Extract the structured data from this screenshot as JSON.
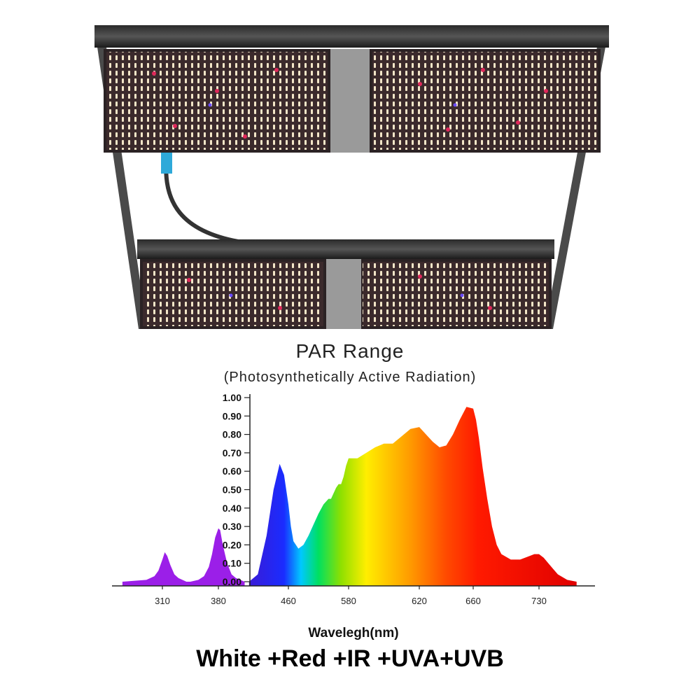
{
  "photo": {
    "subject": "LED grow light fixture with two light bars on a frame",
    "icon": "led-grow-light-image"
  },
  "chart_data": {
    "type": "area",
    "title": "PAR Range",
    "subtitle": "(Photosynthetically Active Radiation)",
    "xlabel": "Wavelegh(nm)",
    "ylabel": "",
    "xticks": [
      310,
      380,
      460,
      580,
      620,
      660,
      730
    ],
    "yticks": [
      "1.00",
      "0.90",
      "0.80",
      "0.70",
      "0.60",
      "0.50",
      "0.40",
      "0.30",
      "0.20",
      "0.10",
      "0.00"
    ],
    "ylim": [
      0,
      1.0
    ],
    "grid": false,
    "series": [
      {
        "x": [
          260,
          290,
          300,
          305,
          310,
          313,
          316,
          320,
          325,
          330,
          335,
          340,
          345
        ],
        "y": [
          0.0,
          0.01,
          0.03,
          0.06,
          0.12,
          0.16,
          0.14,
          0.09,
          0.04,
          0.02,
          0.01,
          0.0,
          0.0
        ],
        "color": "#9b1fe8"
      },
      {
        "x": [
          345,
          355,
          362,
          368,
          372,
          376,
          380,
          382,
          385,
          390,
          395,
          400,
          405,
          410
        ],
        "y": [
          0.0,
          0.01,
          0.03,
          0.08,
          0.15,
          0.24,
          0.29,
          0.28,
          0.2,
          0.1,
          0.04,
          0.02,
          0.01,
          0.0
        ],
        "color": "#9b1fe8"
      },
      {
        "x": [
          415,
          425,
          435,
          443,
          450,
          455,
          460,
          465,
          470,
          480,
          490,
          500,
          510,
          520,
          530,
          540,
          545,
          550,
          555,
          560,
          565,
          570,
          575,
          580,
          585,
          590,
          595,
          600,
          605,
          610,
          615,
          620,
          625,
          630,
          635,
          640,
          645,
          650,
          655,
          660,
          663,
          666,
          670,
          675,
          680,
          685,
          690,
          700,
          710,
          720,
          725,
          730,
          735,
          740,
          745,
          750,
          760,
          770
        ],
        "y": [
          0.0,
          0.04,
          0.25,
          0.5,
          0.64,
          0.58,
          0.42,
          0.3,
          0.22,
          0.18,
          0.2,
          0.25,
          0.31,
          0.37,
          0.42,
          0.45,
          0.45,
          0.48,
          0.51,
          0.53,
          0.53,
          0.57,
          0.63,
          0.67,
          0.67,
          0.7,
          0.73,
          0.75,
          0.75,
          0.79,
          0.83,
          0.84,
          0.8,
          0.76,
          0.73,
          0.74,
          0.8,
          0.88,
          0.95,
          0.94,
          0.88,
          0.78,
          0.62,
          0.45,
          0.3,
          0.2,
          0.15,
          0.12,
          0.12,
          0.14,
          0.15,
          0.15,
          0.13,
          0.1,
          0.07,
          0.04,
          0.01,
          0.0
        ],
        "gradient": [
          {
            "nm": 415,
            "color": "#3a1bd6"
          },
          {
            "nm": 455,
            "color": "#1a2cff"
          },
          {
            "nm": 485,
            "color": "#00c8ff"
          },
          {
            "nm": 520,
            "color": "#00e060"
          },
          {
            "nm": 565,
            "color": "#8fe000"
          },
          {
            "nm": 590,
            "color": "#ffee00"
          },
          {
            "nm": 615,
            "color": "#ff9a00"
          },
          {
            "nm": 640,
            "color": "#ff4a00"
          },
          {
            "nm": 665,
            "color": "#ff1a00"
          },
          {
            "nm": 770,
            "color": "#e00000"
          }
        ]
      }
    ]
  },
  "caption": "White +Red +IR +UVA+UVB"
}
